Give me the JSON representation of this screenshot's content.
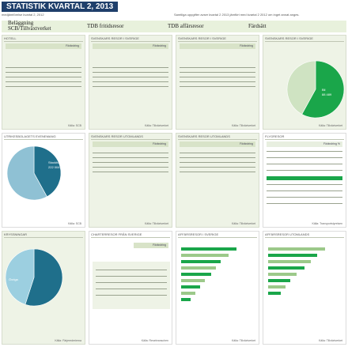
{
  "header": {
    "title": "STATISTIK KVARTAL 2, 2013",
    "subtitle": "medjämförelse kvartal 2, 2012",
    "right_note": "Samtliga uppgifter avser kvartal 2 2013 jämfört med kvartal 2 2012 om inget annat anges. ",
    "brand_color": "#1f3f6b",
    "panel_color": "#eef3e6",
    "accent_green": "#1aa64a"
  },
  "occupancy_strip": {
    "label_line1": "Beläggning",
    "label_line2": "SCB/Tillväxtverket",
    "col1": "TDB fritidsresor",
    "col2": "TDB affärsresor",
    "col3": "Färdsätt"
  },
  "panels": {
    "p_r1c1": {
      "title": "HOTELL",
      "header": "Förändring",
      "foot": "Källa: SCB"
    },
    "p_r1c2": {
      "title": "SVENSKARS RESOR I SVERIGE",
      "header": "Förändring",
      "foot": "Källa: Tillväxtverket"
    },
    "p_r1c3": {
      "title": "SVENSKARS RESOR I SVERIGE",
      "header": "Förändring",
      "foot": "Källa: Tillväxtverket"
    },
    "p_r1c4": {
      "title": "SVENSKARS RESOR I SVERIGE",
      "foot": "Källa: Tillväxtverket"
    },
    "p_r2c1": {
      "title": "UTRIKESBOLAGETS EVENEMANG",
      "foot": "Källa: SCB"
    },
    "p_r2c2": {
      "title": "SVENSKARS RESOR UTOMLANDS",
      "header": "Förändring",
      "foot": "Källa: Tillväxtverket"
    },
    "p_r2c3": {
      "title": "SVENSKARS RESOR UTOMLANDS",
      "header": "Förändring",
      "foot": "Källa: Tillväxtverket"
    },
    "p_r2c4": {
      "title": "FLYGRESOR",
      "header": "Förändring %",
      "foot": "Källa: Transportstyrelsen"
    },
    "p_r3c1": {
      "title": "KRYSSNINGAR",
      "foot": "Källa: Färjerederierna"
    },
    "p_r3c2": {
      "title": "CHARTERRESOR FRÅN SVERIGE",
      "header": "Förändring",
      "foot": "Källa: Resebranschen"
    },
    "p_r3c3": {
      "title": "AFFÄRSRESOR I SVERIGE",
      "foot": "Källa: Tillväxtverket"
    },
    "p_r3c4": {
      "title": "AFFÄRSRESOR UTOMLANDS",
      "foot": "Källa: Tillväxtverket"
    }
  },
  "pie_top_right": {
    "label_big": "Bil",
    "label_big_value": "88 489",
    "big_share": 0.58,
    "other_share": 0.42
  },
  "pie_mid_left": {
    "label_big": "Stockholm",
    "label_big_value": "222 004",
    "big_share": 0.42,
    "other_share": 0.58
  },
  "pie_bot_left": {
    "label_big": "Övriga",
    "big_share": 0.55,
    "other_share": 0.45
  }
}
